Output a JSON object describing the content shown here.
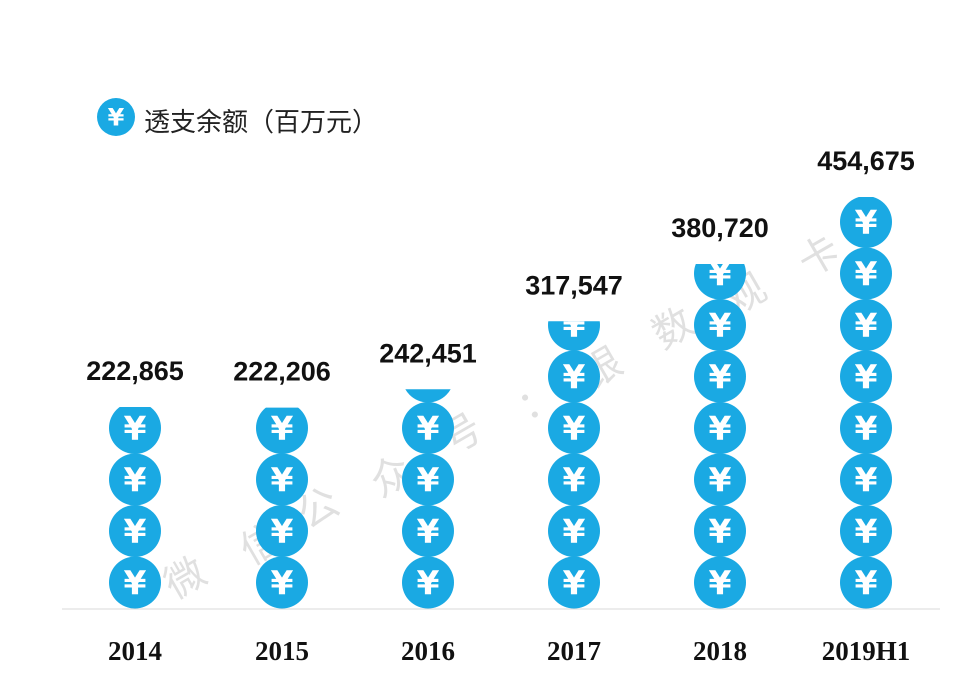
{
  "chart_data": {
    "type": "bar",
    "categories": [
      "2014",
      "2015",
      "2016",
      "2017",
      "2018",
      "2019H1"
    ],
    "series": [
      {
        "name": "透支余额（百万元）",
        "values": [
          222865,
          222206,
          242451,
          317547,
          380720,
          454675
        ]
      }
    ],
    "data_labels": [
      "222,865",
      "222,206",
      "242,451",
      "317,547",
      "380,720",
      "454,675"
    ],
    "legend_position": "top-left",
    "grid": false
  },
  "legend": {
    "icon": "yen-coin-icon",
    "symbol": "¥"
  },
  "colors": {
    "coin": "#1aa9e3",
    "baseline": "#d9d9d9",
    "watermark": "#c8c8c8"
  },
  "watermark": {
    "chars": [
      "微",
      "信",
      "公",
      "众",
      "号",
      "：",
      "银",
      "数",
      "观",
      "卡"
    ]
  }
}
